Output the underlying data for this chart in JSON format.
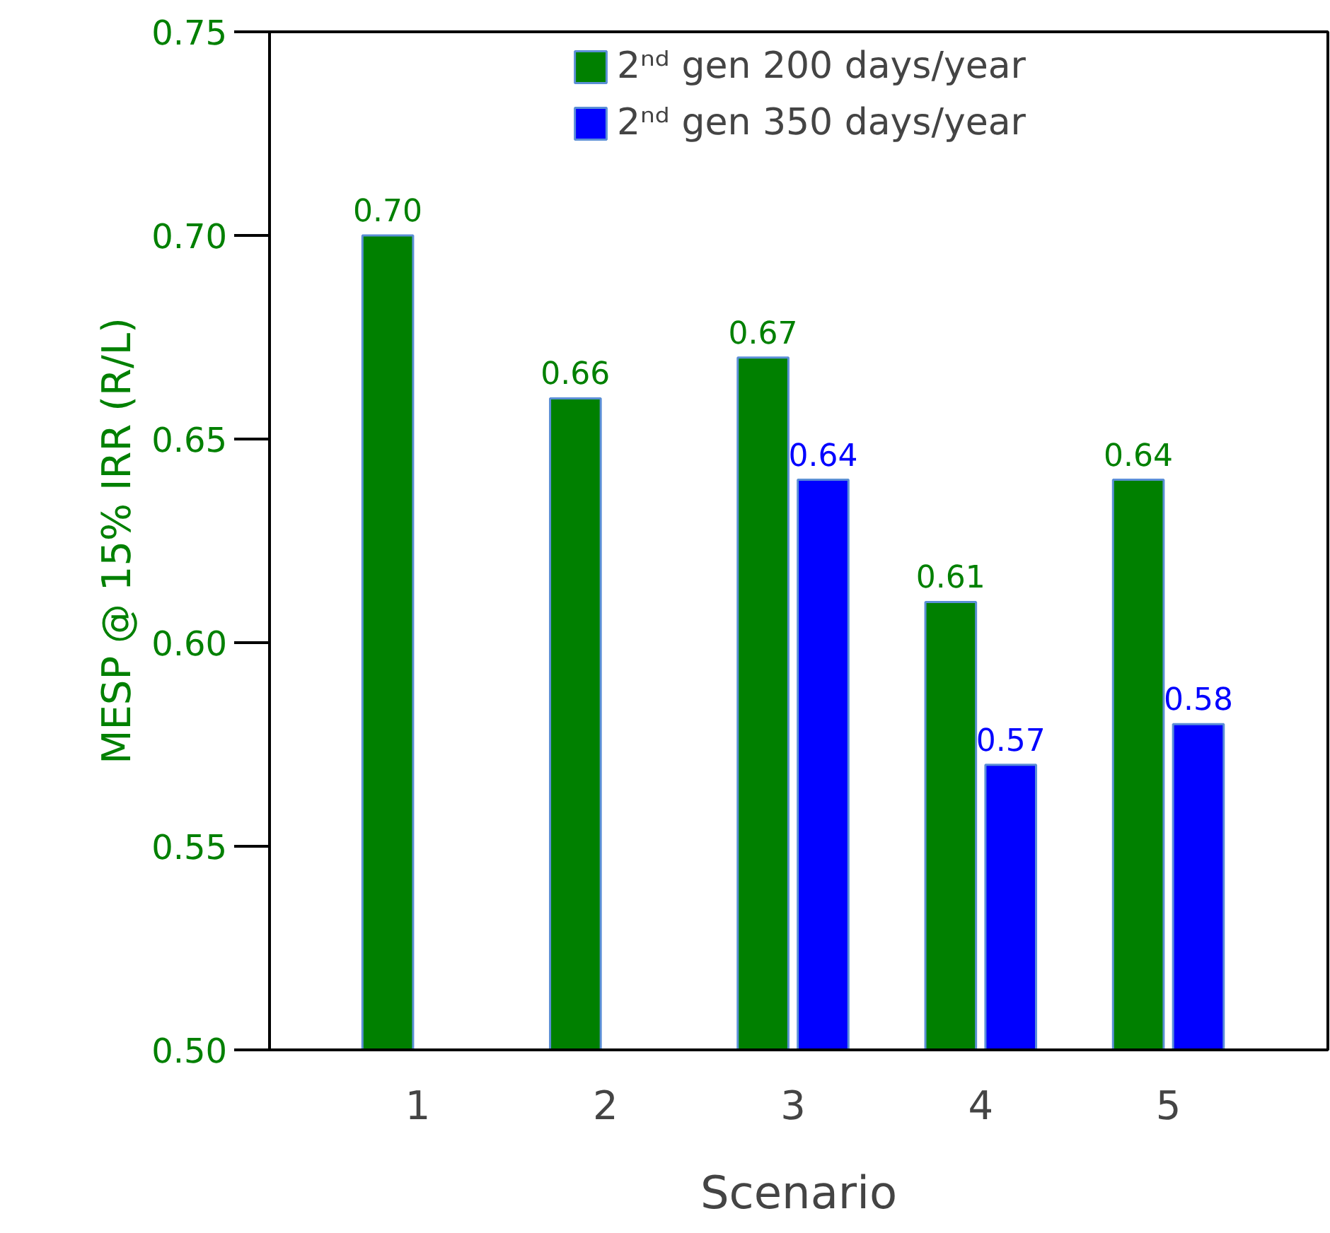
{
  "chart_data": {
    "type": "bar",
    "xlabel": "Scenario",
    "ylabel": "MESP @ 15% IRR (R/L)",
    "categories": [
      "1",
      "2",
      "3",
      "4",
      "5"
    ],
    "series": [
      {
        "name": "2ⁿᵈ gen 200 days/year",
        "color": "#008000",
        "values": [
          0.7,
          0.66,
          0.67,
          0.61,
          0.64
        ],
        "value_labels": [
          "0.70",
          "0.66",
          "0.67",
          "0.61",
          "0.64"
        ]
      },
      {
        "name": "2ⁿᵈ gen 350 days/year",
        "color": "#0000ff",
        "values": [
          null,
          null,
          0.64,
          0.57,
          0.58
        ],
        "value_labels": [
          null,
          null,
          "0.64",
          "0.57",
          "0.58"
        ]
      }
    ],
    "ylim": [
      0.5,
      0.75
    ],
    "yticks": [
      {
        "value": 0.5,
        "label": "0.50"
      },
      0.55,
      {
        "value": 0.6,
        "label": "0.60"
      },
      0.65,
      {
        "value": 0.7,
        "label": "0.70"
      },
      0.75
    ],
    "grid": false,
    "legend": "top"
  }
}
